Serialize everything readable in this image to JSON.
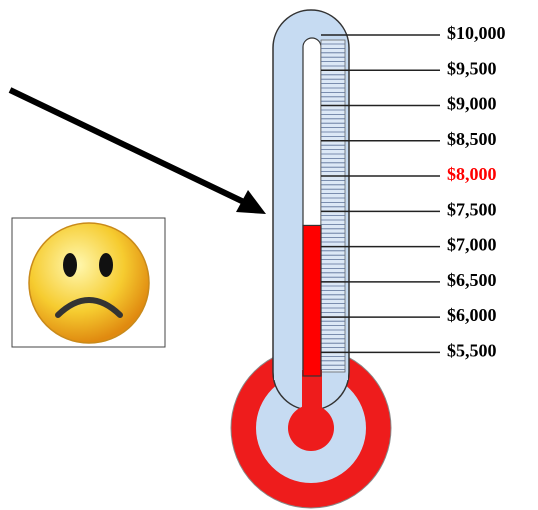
{
  "chart_data": {
    "type": "thermometer",
    "value": 7300,
    "color": "#ff0000",
    "ylim": [
      5250,
      10000
    ],
    "yticks": [
      {
        "value": 5500,
        "label": "$5,500"
      },
      {
        "value": 6000,
        "label": "$6,000"
      },
      {
        "value": 6500,
        "label": "$6,500"
      },
      {
        "value": 7000,
        "label": "$7,000"
      },
      {
        "value": 7500,
        "label": "$7,500"
      },
      {
        "value": 8000,
        "label": "$8,000",
        "color": "#ff0000"
      },
      {
        "value": 8500,
        "label": "$8,500"
      },
      {
        "value": 9000,
        "label": "$9,000"
      },
      {
        "value": 9500,
        "label": "$9,500"
      },
      {
        "value": 10000,
        "label": "$10,000"
      }
    ]
  }
}
